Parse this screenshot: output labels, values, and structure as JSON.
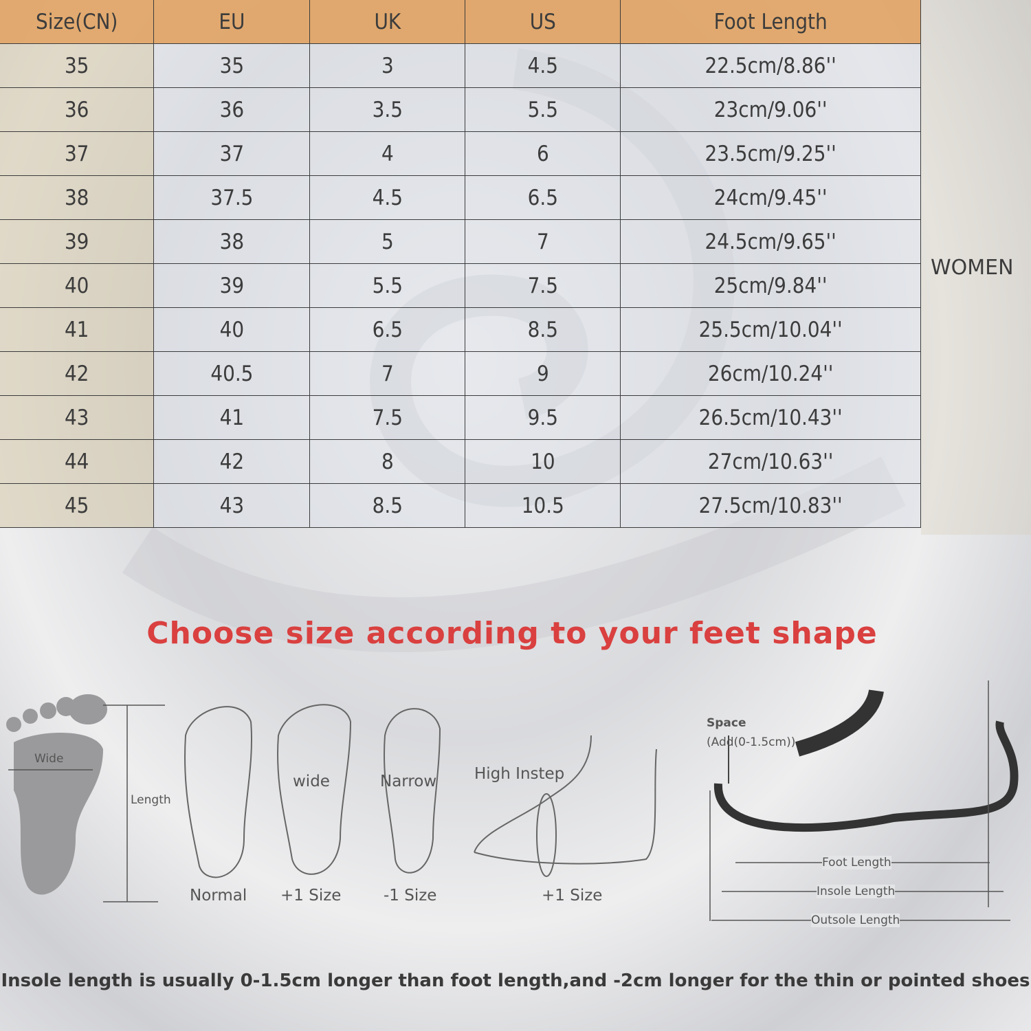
{
  "size_chart": {
    "headers": [
      "Size(CN)",
      "EU",
      "UK",
      "US",
      "Foot Length"
    ],
    "rows": [
      [
        "35",
        "35",
        "3",
        "4.5",
        "22.5cm/8.86''"
      ],
      [
        "36",
        "36",
        "3.5",
        "5.5",
        "23cm/9.06''"
      ],
      [
        "37",
        "37",
        "4",
        "6",
        "23.5cm/9.25''"
      ],
      [
        "38",
        "37.5",
        "4.5",
        "6.5",
        "24cm/9.45''"
      ],
      [
        "39",
        "38",
        "5",
        "7",
        "24.5cm/9.65''"
      ],
      [
        "40",
        "39",
        "5.5",
        "7.5",
        "25cm/9.84''"
      ],
      [
        "41",
        "40",
        "6.5",
        "8.5",
        "25.5cm/10.04''"
      ],
      [
        "42",
        "40.5",
        "7",
        "9",
        "26cm/10.24''"
      ],
      [
        "43",
        "41",
        "7.5",
        "9.5",
        "26.5cm/10.43''"
      ],
      [
        "44",
        "42",
        "8",
        "10",
        "27cm/10.63''"
      ],
      [
        "45",
        "43",
        "8.5",
        "10.5",
        "27.5cm/10.83''"
      ]
    ],
    "gender_label": "WOMEN",
    "header_color": "#e0a05f"
  },
  "guide": {
    "title": "Choose size according to your feet shape",
    "title_color": "#d9403f",
    "footprint_wide": "Wide",
    "footprint_length": "Length",
    "normal": "Normal",
    "wide_label": "wide",
    "wide_size": "+1 Size",
    "narrow_label": "Narrow",
    "narrow_size": "-1 Size",
    "instep_label": "High Instep",
    "instep_size": "+1 Size",
    "space_label": "Space",
    "space_add": "(Add(0-1.5cm))",
    "foot_length": "Foot Length",
    "insole_length": "Insole Length",
    "outsole_length": "Outsole Length",
    "note": "Insole length is usually 0-1.5cm longer than foot length,and -2cm longer for the thin or pointed shoes"
  }
}
